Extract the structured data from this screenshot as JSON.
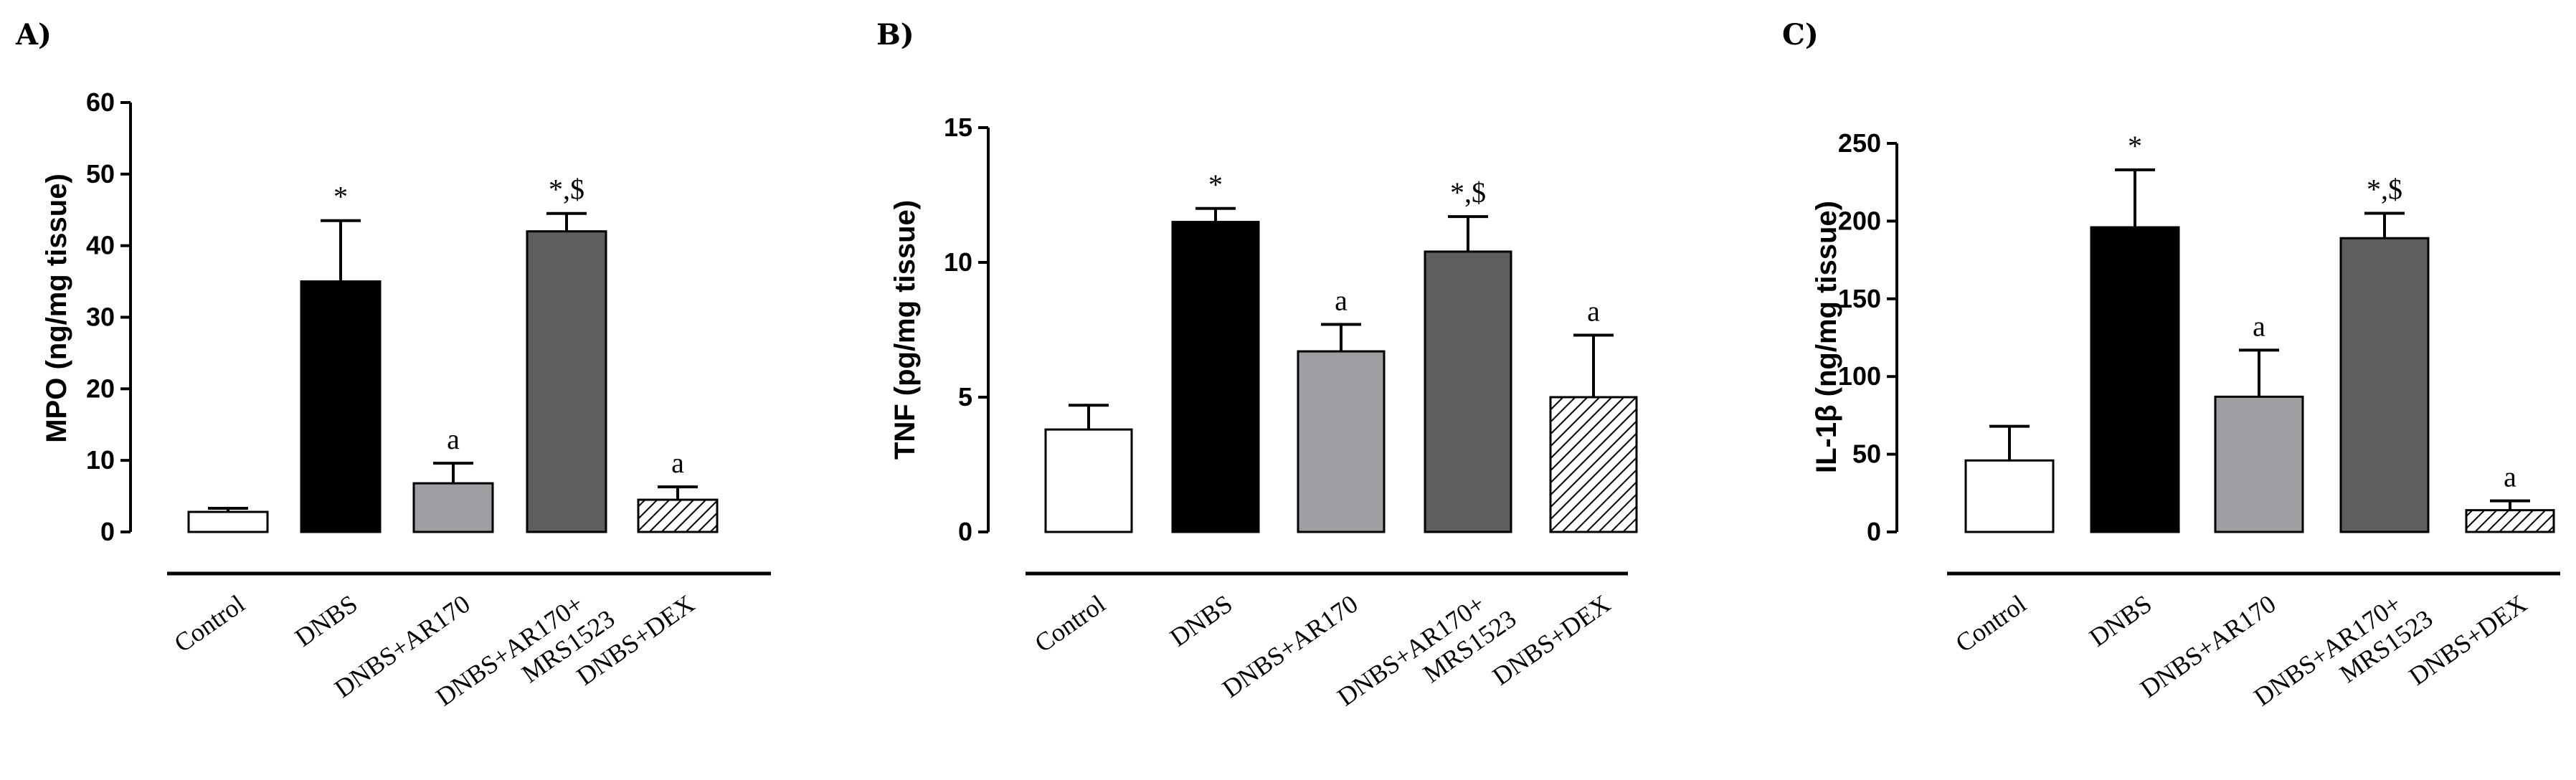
{
  "chart_data": [
    {
      "panel": "A)",
      "type": "bar",
      "ylabel": "MPO (ng/mg tissue)",
      "ylim": [
        0,
        60
      ],
      "yticks": [
        0,
        10,
        20,
        30,
        40,
        50,
        60
      ],
      "categories": [
        "Control",
        "DNBS",
        "DNBS+AR170",
        "DNBS+AR170+\nMRS1523",
        "DNBS+DEX"
      ],
      "values": [
        2.8,
        35,
        6.8,
        42,
        4.5
      ],
      "errors": [
        0.5,
        8.5,
        2.8,
        2.5,
        1.8
      ],
      "annotations": [
        "",
        "*",
        "a",
        "*,$",
        "a"
      ],
      "fills": [
        "white",
        "black",
        "lightgray",
        "darkgray",
        "hatch"
      ]
    },
    {
      "panel": "B)",
      "type": "bar",
      "ylabel": "TNF (pg/mg tissue)",
      "ylim": [
        0,
        15
      ],
      "yticks": [
        0,
        5,
        10,
        15
      ],
      "categories": [
        "Control",
        "DNBS",
        "DNBS+AR170",
        "DNBS+AR170+\nMRS1523",
        "DNBS+DEX"
      ],
      "values": [
        3.8,
        11.5,
        6.7,
        10.4,
        5.0
      ],
      "errors": [
        0.9,
        0.5,
        1.0,
        1.3,
        2.3
      ],
      "annotations": [
        "",
        "*",
        "a",
        "*,$",
        "a"
      ],
      "fills": [
        "white",
        "black",
        "lightgray",
        "darkgray",
        "hatch"
      ]
    },
    {
      "panel": "C)",
      "type": "bar",
      "ylabel": "IL-1β (ng/mg tissue)",
      "ylim": [
        0,
        250
      ],
      "yticks": [
        0,
        50,
        100,
        150,
        200,
        250
      ],
      "categories": [
        "Control",
        "DNBS",
        "DNBS+AR170",
        "DNBS+AR170+\nMRS1523",
        "DNBS+DEX"
      ],
      "values": [
        46,
        196,
        87,
        189,
        14
      ],
      "errors": [
        22,
        37,
        30,
        16,
        6
      ],
      "annotations": [
        "",
        "*",
        "a",
        "*,$",
        "a"
      ],
      "fills": [
        "white",
        "black",
        "lightgray",
        "darkgray",
        "hatch"
      ]
    }
  ],
  "colors": {
    "white": "#ffffff",
    "black": "#000000",
    "lightgray": "#9e9ea2",
    "darkgray": "#5e5e5e",
    "hatch": "#ffffff",
    "stroke": "#000000"
  }
}
